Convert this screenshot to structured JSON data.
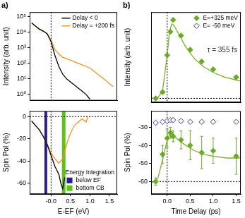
{
  "chart_data": [
    {
      "type": "line",
      "title": "a)",
      "y_label": "Intensity (arb. unit)",
      "log": "y",
      "xlim": [
        -0.55,
        1.7
      ],
      "ylim": [
        0.4,
        200000
      ],
      "yticks": [
        {
          "value": 1,
          "label": "10⁰"
        },
        {
          "value": 10,
          "label": "10¹"
        },
        {
          "value": 100,
          "label": "10²"
        },
        {
          "value": 1000,
          "label": "10³"
        },
        {
          "value": 10000,
          "label": "10⁴"
        },
        {
          "value": 100000,
          "label": "10⁵"
        }
      ],
      "tick_labels": "y",
      "grid": false,
      "legend": "upper right",
      "vlines": [
        0
      ],
      "series": [
        {
          "name": "Delay < 0",
          "color": "#000000",
          "x": [
            -0.5,
            -0.4,
            -0.3,
            -0.2,
            -0.1,
            0,
            0.1,
            0.2,
            0.3,
            0.4,
            0.5,
            0.6,
            0.7,
            0.8,
            0.9,
            1.0
          ],
          "values": [
            40000,
            25000,
            16000,
            12000,
            8000,
            2500,
            320,
            63,
            20,
            10,
            6.3,
            4,
            2.5,
            1.6,
            1,
            0.5
          ]
        },
        {
          "name": "Delay = +200 fs",
          "color": "#f0961e",
          "x": [
            -0.5,
            -0.4,
            -0.3,
            -0.2,
            -0.1,
            0,
            0.1,
            0.2,
            0.3,
            0.4,
            0.5,
            0.6,
            0.7,
            0.8,
            0.9,
            1.0,
            1.1,
            1.2,
            1.3,
            1.4,
            1.5,
            1.6
          ],
          "values": [
            40000,
            25000,
            16000,
            12000,
            8000,
            3200,
            800,
            400,
            250,
            200,
            160,
            126,
            100,
            80,
            63,
            50,
            32,
            20,
            13,
            8,
            5,
            3.2
          ]
        }
      ]
    },
    {
      "type": "line",
      "x_label": "E-EF (eV)",
      "y_label": "Spin Pol (%)",
      "xlim": [
        -0.55,
        1.7
      ],
      "ylim": [
        -70,
        5
      ],
      "xticks": [
        {
          "value": 0,
          "label": "-0.0"
        },
        0.5,
        {
          "value": 1,
          "label": "1.0"
        },
        1.5
      ],
      "yticks": [
        -60,
        -40,
        -20,
        0
      ],
      "grid": false,
      "legend": "lower right",
      "legend_title": "Energy Integration",
      "vlines": [
        0
      ],
      "hlines": [
        0
      ],
      "bands": [
        {
          "name": "below EF",
          "color": "#2a1a8c",
          "range": [
            -0.17,
            -0.1
          ]
        },
        {
          "name": "bottom CB",
          "color": "#5ec21a",
          "range": [
            0.28,
            0.37
          ]
        }
      ],
      "series": [
        {
          "color": "#000000",
          "x": [
            -0.5,
            -0.4,
            -0.3,
            -0.2,
            -0.1,
            0,
            0.1,
            0.2,
            0.25,
            0.3,
            0.35
          ],
          "values": [
            -4,
            -8,
            -12,
            -18,
            -25,
            -35,
            -45,
            -52,
            -60,
            -65,
            -55
          ]
        },
        {
          "color": "#f0961e",
          "x": [
            -0.5,
            -0.4,
            -0.3,
            -0.2,
            -0.1,
            0,
            0.1,
            0.2,
            0.3,
            0.4,
            0.5,
            0.6,
            0.7,
            0.8,
            0.9,
            0.95
          ],
          "values": [
            -4,
            -8,
            -12,
            -18,
            -25,
            -33,
            -38,
            -42,
            -38,
            -25,
            -15,
            -8,
            -5,
            -2,
            -5,
            0
          ]
        }
      ]
    },
    {
      "type": "scatter",
      "title": "b)",
      "y_label": "Intensity (arb. unit)",
      "xlim": [
        -0.35,
        1.6
      ],
      "ylim": [
        -0.05,
        1.1
      ],
      "tick_labels": false,
      "grid": false,
      "legend": "upper right",
      "annotations": [
        "τ = 355 fs"
      ],
      "vlines": [
        0
      ],
      "hlines": [
        0
      ],
      "series": [
        {
          "name": "E=+325 meV",
          "color": "#6aaa25",
          "marker": "diamond",
          "x": [
            -0.25,
            -0.1,
            0,
            0.07,
            0.13,
            0.3,
            0.5,
            0.75,
            1.0,
            1.5
          ],
          "values": [
            0,
            0.08,
            0.55,
            0.85,
            1.0,
            0.8,
            0.62,
            0.47,
            0.37,
            0.27
          ]
        },
        {
          "color": "#7fae2a",
          "type": "line",
          "x": [
            -0.35,
            -0.2,
            -0.1,
            0,
            0.05,
            0.1,
            0.15,
            0.25,
            0.4,
            0.6,
            0.8,
            1.0,
            1.25,
            1.6
          ],
          "values": [
            0,
            0.01,
            0.1,
            0.55,
            0.85,
            0.95,
            0.93,
            0.82,
            0.66,
            0.5,
            0.4,
            0.33,
            0.27,
            0.22
          ]
        }
      ]
    },
    {
      "type": "scatter",
      "x_label": "Time Delay (ps)",
      "y_label": "Spin Pol (%)",
      "xlim": [
        -0.35,
        1.6
      ],
      "ylim": [
        -67,
        -21
      ],
      "xticks": [
        {
          "value": 0,
          "label": "0.0"
        },
        0.5,
        {
          "value": 1,
          "label": "1.0"
        },
        1.5
      ],
      "yticks": [
        -60,
        -50,
        -40,
        -30
      ],
      "grid": false,
      "vlines": [
        0
      ],
      "hlines": [
        -60
      ],
      "series": [
        {
          "name": "E=+325 meV",
          "color": "#6aaa25",
          "marker": "diamond",
          "x": [
            -0.25,
            -0.1,
            0,
            0.07,
            0.13,
            0.3,
            0.5,
            0.75,
            1.0,
            1.5
          ],
          "values": [
            -60,
            -45,
            -36,
            -33,
            -35,
            -37,
            -40,
            -44,
            -43,
            -46
          ],
          "errors": [
            2,
            5,
            5,
            3,
            3,
            5,
            8,
            9,
            7,
            10
          ]
        },
        {
          "name": "E= -50 meV",
          "color": "#3a3a9a",
          "marker": "open_diamond",
          "x": [
            -0.25,
            -0.1,
            0,
            0.07,
            0.13,
            0.3,
            0.5,
            0.75,
            1.0,
            1.5
          ],
          "values": [
            -27.5,
            -27,
            -26.5,
            -26,
            -26,
            -26.5,
            -27,
            -27,
            -27,
            -27
          ]
        },
        {
          "color": "#7fae2a",
          "type": "line",
          "x": [
            -0.35,
            -0.2,
            -0.1,
            0,
            0.05,
            0.1,
            0.2,
            0.4,
            0.6,
            0.8,
            1.0,
            1.3,
            1.6
          ],
          "values": [
            -61,
            -58,
            -48,
            -37,
            -34,
            -34,
            -36,
            -40,
            -43,
            -45,
            -46,
            -47,
            -47
          ]
        }
      ]
    }
  ]
}
